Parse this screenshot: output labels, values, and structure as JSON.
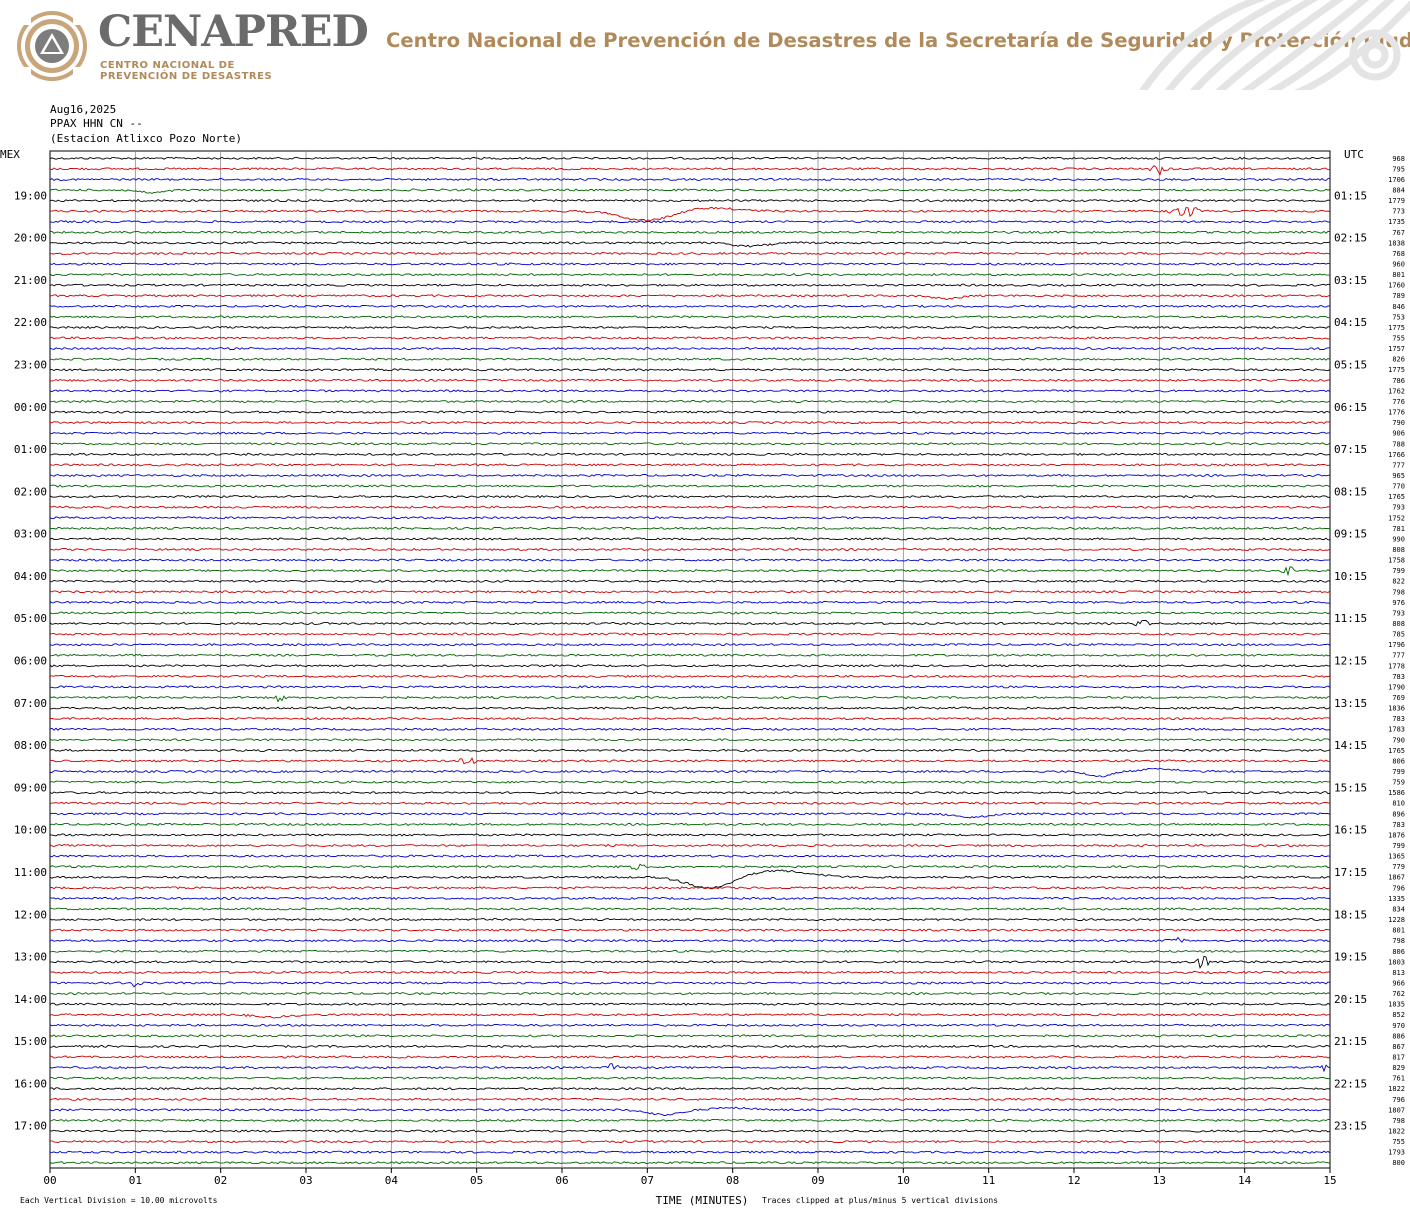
{
  "header": {
    "logo_name": "CENAPRED",
    "logo_sub_line1": "CENTRO NACIONAL DE",
    "logo_sub_line2": "PREVENCIÓN DE DESASTRES",
    "title": "Centro Nacional de Prevención de Desastres de la Secretaría de Seguridad y Protección Ciudadana",
    "accent_color": "#b08a5a",
    "logo_gray": "#6b6b6b"
  },
  "chart_data": {
    "type": "line",
    "subtype": "helicorder",
    "info_lines": [
      "Aug16,2025",
      "PPAX HHN CN --",
      "(Estacion Atlixco Pozo Norte)"
    ],
    "left_timezone": "MEX",
    "right_timezone": "UTC",
    "left_hour_labels": [
      "19:00",
      "20:00",
      "21:00",
      "22:00",
      "23:00",
      "00:00",
      "01:00",
      "02:00",
      "03:00",
      "04:00",
      "05:00",
      "06:00",
      "07:00",
      "08:00",
      "09:00",
      "10:00",
      "11:00",
      "12:00",
      "13:00",
      "14:00",
      "15:00",
      "16:00",
      "17:00"
    ],
    "right_hour_labels": [
      "01:15",
      "02:15",
      "03:15",
      "04:15",
      "05:15",
      "06:15",
      "07:15",
      "08:15",
      "09:15",
      "10:15",
      "11:15",
      "12:15",
      "13:15",
      "14:15",
      "15:15",
      "16:15",
      "17:15",
      "18:15",
      "19:15",
      "20:15",
      "21:15",
      "22:15",
      "23:15"
    ],
    "x_tick_labels": [
      "00",
      "01",
      "02",
      "03",
      "04",
      "05",
      "06",
      "07",
      "08",
      "09",
      "10",
      "11",
      "12",
      "13",
      "14",
      "15"
    ],
    "xlabel": "TIME (MINUTES)",
    "xlim": [
      0,
      15
    ],
    "traces_per_hour": 4,
    "trace_count": 96,
    "trace_colors": [
      "#000000",
      "#cc0000",
      "#0000cc",
      "#006400"
    ],
    "trace_values": [
      "968",
      "795",
      "1706",
      "884",
      "1779",
      "773",
      "1735",
      "767",
      "1838",
      "768",
      "960",
      "801",
      "1760",
      "789",
      "846",
      "753",
      "1775",
      "755",
      "1757",
      "826",
      "1775",
      "786",
      "1762",
      "776",
      "1776",
      "790",
      "906",
      "788",
      "1766",
      "777",
      "965",
      "770",
      "1765",
      "793",
      "1752",
      "781",
      "990",
      "808",
      "1758",
      "799",
      "822",
      "798",
      "976",
      "793",
      "808",
      "785",
      "1796",
      "777",
      "1778",
      "783",
      "1790",
      "769",
      "1836",
      "783",
      "1783",
      "790",
      "1765",
      "806",
      "799",
      "759",
      "1586",
      "810",
      "896",
      "783",
      "1876",
      "799",
      "1365",
      "779",
      "1867",
      "796",
      "1335",
      "834",
      "1228",
      "801",
      "798",
      "806",
      "1803",
      "813",
      "966",
      "762",
      "1835",
      "852",
      "970",
      "886",
      "867",
      "817",
      "829",
      "761",
      "1822",
      "796",
      "1807",
      "798",
      "1822",
      "755",
      "1793",
      "800"
    ],
    "footer_left": "Each Vertical Division =   10.00 microvolts",
    "footer_right": "Traces clipped at plus/minus 5 vertical divisions",
    "events": [
      {
        "trace": 5,
        "minute": 7.0,
        "kind": "trough",
        "amplitude": 1.0,
        "width": 1.2
      },
      {
        "trace": 5,
        "minute": 7.7,
        "kind": "crest",
        "amplitude": 0.35,
        "width": 1.4
      },
      {
        "trace": 5,
        "minute": 13.3,
        "kind": "burst",
        "amplitude": 0.6,
        "width": 0.6
      },
      {
        "trace": 8,
        "minute": 8.2,
        "kind": "trough",
        "amplitude": 0.35,
        "width": 0.8
      },
      {
        "trace": 1,
        "minute": 13.0,
        "kind": "burst",
        "amplitude": 0.5,
        "width": 0.3
      },
      {
        "trace": 3,
        "minute": 1.2,
        "kind": "trough",
        "amplitude": 0.3,
        "width": 0.6
      },
      {
        "trace": 13,
        "minute": 10.5,
        "kind": "trough",
        "amplitude": 0.3,
        "width": 0.6
      },
      {
        "trace": 57,
        "minute": 4.9,
        "kind": "burst",
        "amplitude": 0.4,
        "width": 0.3
      },
      {
        "trace": 58,
        "minute": 12.3,
        "kind": "trough",
        "amplitude": 0.5,
        "width": 0.6
      },
      {
        "trace": 58,
        "minute": 13.0,
        "kind": "crest",
        "amplitude": 0.25,
        "width": 1.0
      },
      {
        "trace": 62,
        "minute": 10.8,
        "kind": "trough",
        "amplitude": 0.35,
        "width": 0.8
      },
      {
        "trace": 67,
        "minute": 6.9,
        "kind": "burst",
        "amplitude": 0.4,
        "width": 0.3
      },
      {
        "trace": 68,
        "minute": 7.75,
        "kind": "trough",
        "amplitude": 1.2,
        "width": 1.1
      },
      {
        "trace": 68,
        "minute": 8.5,
        "kind": "crest",
        "amplitude": 0.7,
        "width": 1.6
      },
      {
        "trace": 76,
        "minute": 13.5,
        "kind": "burst",
        "amplitude": 0.8,
        "width": 0.25
      },
      {
        "trace": 78,
        "minute": 1.0,
        "kind": "burst",
        "amplitude": 0.5,
        "width": 0.15
      },
      {
        "trace": 81,
        "minute": 2.6,
        "kind": "trough",
        "amplitude": 0.25,
        "width": 0.8
      },
      {
        "trace": 90,
        "minute": 7.2,
        "kind": "trough",
        "amplitude": 0.5,
        "width": 0.8
      },
      {
        "trace": 90,
        "minute": 8.0,
        "kind": "crest",
        "amplitude": 0.2,
        "width": 1.0
      },
      {
        "trace": 74,
        "minute": 13.2,
        "kind": "burst",
        "amplitude": 0.3,
        "width": 0.3
      },
      {
        "trace": 39,
        "minute": 14.5,
        "kind": "burst",
        "amplitude": 0.35,
        "width": 0.3
      },
      {
        "trace": 44,
        "minute": 12.8,
        "kind": "burst",
        "amplitude": 0.4,
        "width": 0.2
      },
      {
        "trace": 51,
        "minute": 2.7,
        "kind": "burst",
        "amplitude": 0.5,
        "width": 0.2
      },
      {
        "trace": 86,
        "minute": 6.6,
        "kind": "burst",
        "amplitude": 0.4,
        "width": 0.2
      },
      {
        "trace": 86,
        "minute": 14.9,
        "kind": "burst",
        "amplitude": 0.5,
        "width": 0.15
      }
    ]
  }
}
